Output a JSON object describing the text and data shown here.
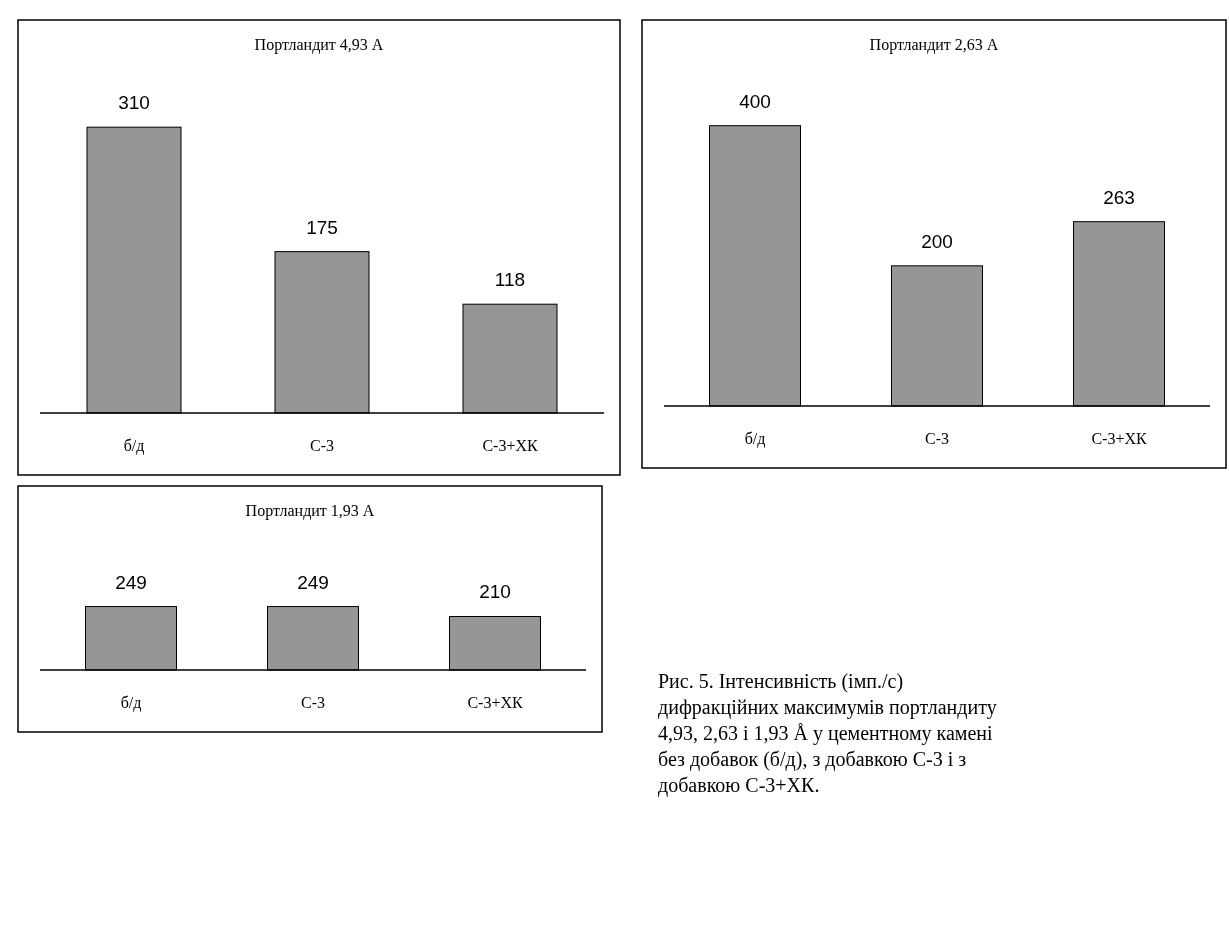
{
  "chart_data": [
    {
      "type": "bar",
      "title": "Портландит 4,93 А",
      "categories": [
        "б/д",
        "С-3",
        "С-3+ХК"
      ],
      "values": [
        310,
        175,
        118
      ],
      "color": "#969696",
      "data_labels": true
    },
    {
      "type": "bar",
      "title": "Портландит 2,63 А",
      "categories": [
        "б/д",
        "С-3",
        "С-3+ХК"
      ],
      "values": [
        400,
        200,
        263
      ],
      "color": "#969696",
      "data_labels": true
    },
    {
      "type": "bar",
      "title": "Портландит 1,93 А",
      "categories": [
        "б/д",
        "С-3",
        "С-3+ХК"
      ],
      "values": [
        249,
        249,
        210
      ],
      "color": "#969696",
      "data_labels": true
    },
    {
      "type": "other",
      "annotations": [
        "Рис. 5. Інтенсивність (імп./с)",
        "дифракційних максимумів портландиту",
        "4,93, 2,63 і  1,93 Å у цементному камені",
        "без добавок (б/д), з добавкою С-3 і з",
        "добавкою С-3+ХК."
      ]
    }
  ]
}
